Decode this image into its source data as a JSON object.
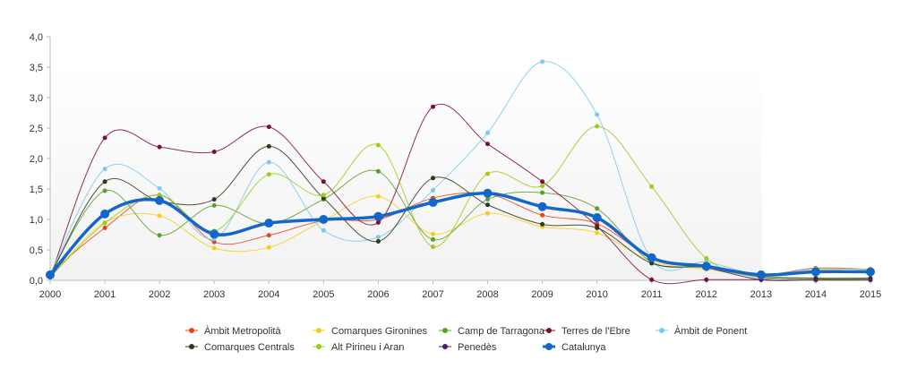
{
  "chart_data": {
    "type": "line",
    "title": "",
    "xlabel": "",
    "ylabel": "",
    "x": [
      "2000",
      "2001",
      "2002",
      "2003",
      "2004",
      "2005",
      "2006",
      "2007",
      "2008",
      "2009",
      "2010",
      "2011",
      "2012",
      "2013",
      "2014",
      "2015"
    ],
    "ylim": [
      0,
      4
    ],
    "y_ticks": [
      "0,0",
      "0,5",
      "1,0",
      "1,5",
      "2,0",
      "2,5",
      "3,0",
      "3,5",
      "4,0"
    ],
    "grid": false,
    "legend_position": "bottom",
    "series": [
      {
        "name": "Àmbit Metropolità",
        "color": "#e8431f",
        "values": [
          0.12,
          0.86,
          1.4,
          0.63,
          0.74,
          0.98,
          1.0,
          1.35,
          1.42,
          1.07,
          0.93,
          0.38,
          0.21,
          0.09,
          0.2,
          0.18
        ]
      },
      {
        "name": "Comarques Gironines",
        "color": "#f4cf1a",
        "values": [
          0.05,
          0.95,
          1.06,
          0.53,
          0.54,
          0.98,
          1.38,
          0.76,
          1.1,
          0.88,
          0.78,
          0.31,
          0.18,
          0.08,
          0.17,
          0.19
        ]
      },
      {
        "name": "Camp de Tarragona",
        "color": "#5aa02c",
        "values": [
          0.1,
          1.47,
          0.74,
          1.23,
          0.93,
          1.33,
          1.79,
          0.67,
          1.33,
          1.44,
          1.18,
          0.3,
          0.22,
          0.07,
          0.04,
          0.04
        ]
      },
      {
        "name": "Terres de l'Ebre",
        "color": "#7a1030",
        "values": [
          0.05,
          2.34,
          2.19,
          2.11,
          2.52,
          1.62,
          0.95,
          2.85,
          2.24,
          1.62,
          0.89,
          0.01,
          0.01,
          0.01,
          0.0,
          0.0
        ]
      },
      {
        "name": "Àmbit de Ponent",
        "color": "#7cc8ee",
        "values": [
          0.1,
          1.83,
          1.51,
          0.68,
          1.94,
          0.82,
          0.71,
          1.48,
          2.42,
          3.59,
          2.72,
          0.34,
          0.3,
          0.09,
          0.19,
          0.17
        ]
      },
      {
        "name": "Comarques Centrals",
        "color": "#2c3a1a",
        "values": [
          0.08,
          1.62,
          1.3,
          1.33,
          2.2,
          1.35,
          0.64,
          1.68,
          1.24,
          0.92,
          0.86,
          0.28,
          0.21,
          0.05,
          0.03,
          0.03
        ]
      },
      {
        "name": "Alt Pirineu i Aran",
        "color": "#9ccc1a",
        "values": [
          0.05,
          0.94,
          1.4,
          0.81,
          1.74,
          1.4,
          2.22,
          0.55,
          1.75,
          1.55,
          2.53,
          1.54,
          0.36,
          0.04,
          0.0,
          0.0
        ]
      },
      {
        "name": "Penedès",
        "color": "#4a1a6e",
        "values": [
          0.05,
          1.1,
          1.3,
          0.74,
          0.94,
          1.0,
          1.05,
          1.28,
          1.43,
          1.2,
          1.02,
          0.36,
          0.21,
          0.01,
          0.01,
          0.01
        ]
      },
      {
        "name": "Catalunya",
        "color": "#1466c8",
        "values": [
          0.09,
          1.09,
          1.31,
          0.76,
          0.94,
          1.0,
          1.05,
          1.28,
          1.43,
          1.21,
          1.03,
          0.37,
          0.23,
          0.09,
          0.14,
          0.14
        ]
      }
    ]
  }
}
